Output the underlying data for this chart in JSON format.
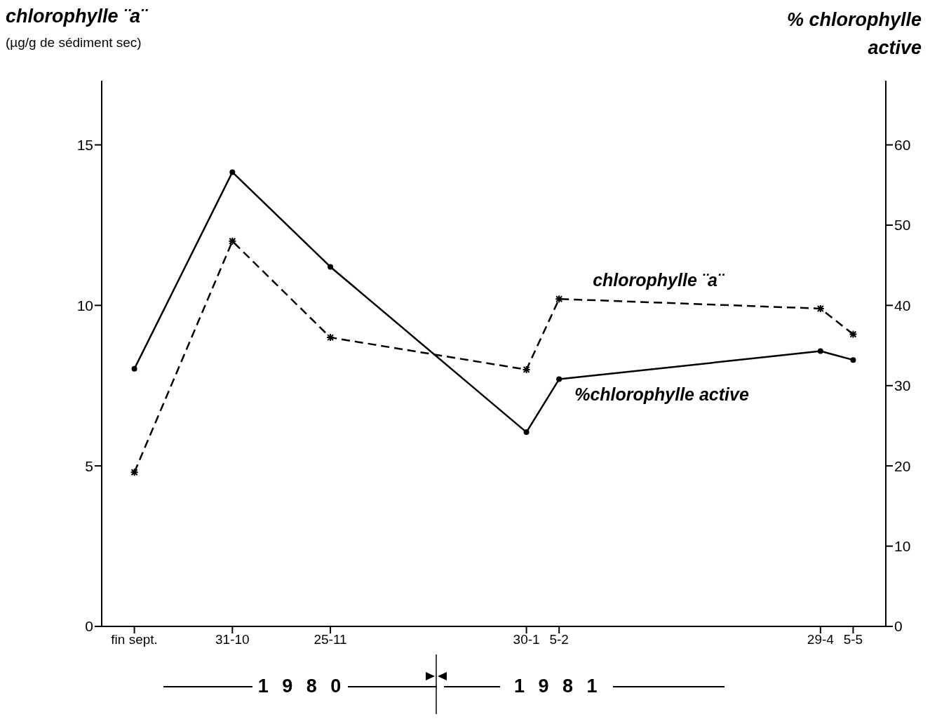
{
  "chart_data": {
    "type": "line",
    "ylabel": "chlorophylle ¨a¨ (µg/g de sédiment sec)",
    "y2label": "% chlorophylle active",
    "categories": [
      "fin sept.",
      null,
      null,
      "31-10",
      null,
      null,
      "25-11",
      null,
      null,
      null,
      null,
      null,
      "30-1",
      "5-2",
      null,
      null,
      null,
      null,
      null,
      null,
      null,
      "29-4",
      "5-5"
    ],
    "series": [
      {
        "name": "chlorophylle ¨a¨",
        "color": "#000000",
        "line_style": "dashed",
        "marker": "cross",
        "values": [
          4.8,
          null,
          null,
          12.0,
          null,
          null,
          9.0,
          null,
          null,
          null,
          null,
          null,
          8.0,
          10.2,
          null,
          null,
          null,
          null,
          null,
          null,
          null,
          9.9,
          9.1
        ]
      },
      {
        "name": "%chlorophylle active",
        "color": "#000000",
        "line_style": "solid",
        "marker": "circle",
        "axis": "y2",
        "values": [
          32.1,
          null,
          null,
          56.6,
          null,
          null,
          44.8,
          null,
          null,
          null,
          null,
          null,
          24.2,
          30.8,
          null,
          null,
          null,
          null,
          null,
          null,
          null,
          34.3,
          33.2
        ]
      }
    ],
    "ylim": [
      0,
      17
    ],
    "yticks": [
      0,
      5,
      10,
      15
    ],
    "y2lim": [
      0,
      68
    ],
    "y2ticks": [
      0,
      10,
      20,
      30,
      40,
      50,
      60
    ],
    "grid": false,
    "annotations": [
      "1 9 8 0",
      "1 9 8 1"
    ]
  }
}
